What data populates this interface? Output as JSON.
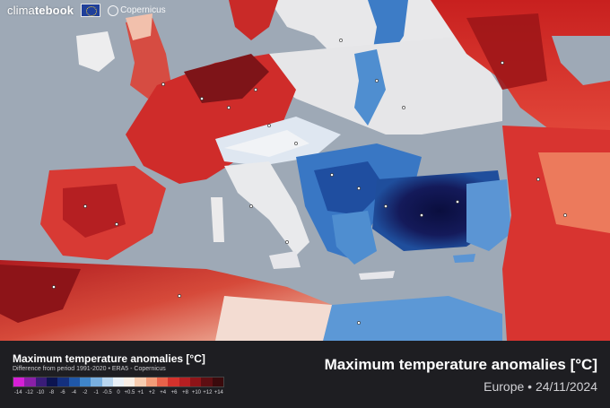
{
  "brand": {
    "logo_prefix": "clima",
    "logo_bold": "tebo",
    "logo_suffix": "ok",
    "partner_logo": "Copernicus",
    "eu_flag_icon": "eu-flag-icon"
  },
  "legend": {
    "title": "Maximum temperature anomalies [°C]",
    "subtitle": "Difference from period 1991-2020 • ERA5 - Copernicus",
    "ticks": [
      "-14",
      "-12",
      "-10",
      "-8",
      "-6",
      "-4",
      "-2",
      "-1",
      "-0.5",
      "0",
      "+0.5",
      "+1",
      "+2",
      "+4",
      "+6",
      "+8",
      "+10",
      "+12",
      "+14"
    ],
    "colors": [
      "#d61fd6",
      "#8a1fa8",
      "#3a1c78",
      "#0c1450",
      "#14307e",
      "#1f57a8",
      "#3f85c9",
      "#79afdf",
      "#b9d6ef",
      "#eaf1f8",
      "#f9efe6",
      "#f8cdb0",
      "#f29c78",
      "#e8624a",
      "#d4322c",
      "#b51f22",
      "#8e1418",
      "#5e0e12",
      "#3a0a0c"
    ]
  },
  "header": {
    "title": "Maximum temperature anomalies [°C]",
    "caption": "Europe • 24/11/2024"
  },
  "map": {
    "region": "Europe",
    "date": "24/11/2024",
    "sea_color": "#9ea9b6",
    "land_neutral_color": "#e6e6e6",
    "warm_color": "#c41c22",
    "cold_color": "#2b6cc0",
    "extreme_cold_color": "#0f1450"
  }
}
